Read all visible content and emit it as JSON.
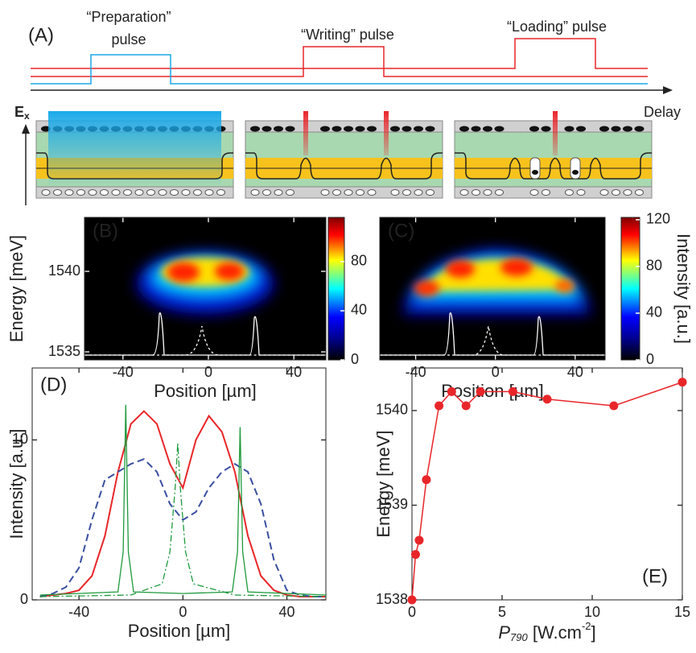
{
  "diagram": {
    "panel": "(A)",
    "prep_1": "“Preparation”",
    "prep_2": "pulse",
    "writing": "“Writing” pulse",
    "loading": "“Loading” pulse",
    "delay": "Delay",
    "field": "E",
    "field_sub": "x"
  },
  "chart_data": [
    {
      "type": "heatmap",
      "annotation": "(B)",
      "x_label": "Position [µm]",
      "y_label": "Energy [meV]",
      "xlim": [
        -58,
        55
      ],
      "xticks": [
        -40,
        0,
        40
      ],
      "ylim": [
        1534.5,
        1543.35
      ],
      "yticks": [
        1535,
        1540
      ],
      "clim": [
        0,
        116
      ],
      "cticks": [
        0,
        40,
        80
      ]
    },
    {
      "type": "heatmap",
      "annotation": "(C)",
      "x_label": "Position [µm]",
      "colorbar_label": "Intensity [a.u.]",
      "xlim": [
        -58,
        55
      ],
      "xticks": [
        -40,
        0,
        40
      ],
      "ylim": [
        1534.5,
        1543.35
      ],
      "clim": [
        0,
        122
      ],
      "cticks": [
        0,
        40,
        80,
        120
      ]
    },
    {
      "type": "line",
      "annotation": "(D)",
      "x_label": "Position [µm]",
      "y_label": "Intensity [a.u.]",
      "xlim": [
        -58,
        55
      ],
      "xticks": [
        -40,
        0,
        40
      ],
      "ylim": [
        0,
        14.5
      ],
      "yticks": [
        0,
        10
      ],
      "series": [
        {
          "color": "#e8262a",
          "dash": "solid",
          "x": [
            -55,
            -50,
            -45,
            -40,
            -35,
            -30,
            -25,
            -20,
            -15,
            -10,
            -5,
            0,
            5,
            10,
            15,
            20,
            25,
            30,
            35,
            40,
            45,
            50,
            55
          ],
          "values": [
            0.2,
            0.3,
            0.4,
            0.6,
            1.5,
            4,
            8,
            11,
            11.8,
            11,
            8.5,
            7,
            10,
            11.5,
            10.5,
            8,
            4,
            1.5,
            0.6,
            0.3,
            0.2,
            0.2,
            0.2
          ]
        },
        {
          "color": "#3a4fa0",
          "dash": "dashed",
          "x": [
            -55,
            -50,
            -45,
            -40,
            -35,
            -30,
            -25,
            -20,
            -15,
            -10,
            -5,
            0,
            5,
            10,
            15,
            20,
            25,
            30,
            35,
            40,
            45,
            50,
            55
          ],
          "values": [
            0.2,
            0.4,
            0.8,
            2,
            5,
            7.5,
            8,
            8.5,
            8.8,
            8,
            6,
            5,
            5.5,
            7,
            8,
            8.5,
            8,
            6,
            2.5,
            0.6,
            0.3,
            0.2,
            0.2
          ]
        },
        {
          "color": "#1e9a3c",
          "dash": "solid",
          "x": [
            -55,
            -25,
            -23,
            -22,
            -21,
            -19,
            0,
            19,
            21,
            22,
            23,
            25,
            55
          ],
          "values": [
            0.3,
            0.5,
            3,
            12.2,
            3,
            0.5,
            0.4,
            0.5,
            3,
            10.8,
            3,
            0.5,
            0.3
          ]
        },
        {
          "color": "#1e9a3c",
          "dash": "dashdot",
          "x": [
            -55,
            -20,
            -8,
            -5,
            -3,
            -2,
            -1,
            1,
            4,
            20,
            55
          ],
          "values": [
            0.2,
            0.3,
            1,
            3,
            7,
            9.8,
            7,
            3,
            1,
            0.3,
            0.2
          ]
        }
      ]
    },
    {
      "type": "scatter",
      "annotation": "(E)",
      "x_label": {
        "symbol": "P",
        "subscript": "790",
        "unit": " [W.cm",
        "exponent": "-2",
        "close": "]"
      },
      "y_label": "Energy [meV]",
      "color": "#e8262a",
      "xlim": [
        0,
        15
      ],
      "xticks": [
        0,
        5,
        10,
        15
      ],
      "ylim": [
        1538,
        1540.45
      ],
      "yticks": [
        1538,
        1539,
        1540
      ],
      "x": [
        0,
        0.2,
        0.4,
        0.8,
        1.5,
        2.2,
        3,
        3.8,
        5.6,
        7.5,
        11.2,
        15
      ],
      "values": [
        1538,
        1538.48,
        1538.63,
        1539.27,
        1540.05,
        1540.2,
        1540.05,
        1540.2,
        1540.2,
        1540.12,
        1540.05,
        1540.3
      ]
    }
  ]
}
